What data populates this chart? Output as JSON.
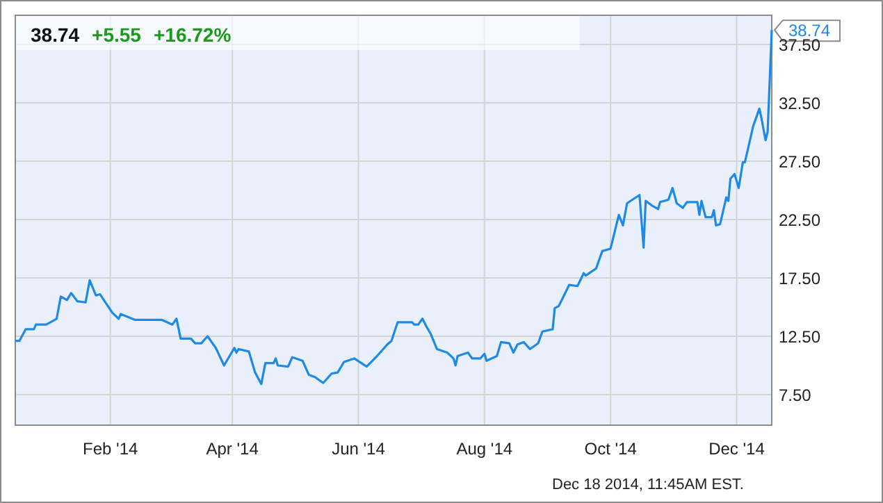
{
  "chart_data": {
    "type": "line",
    "title": "38.74",
    "x": [
      "2013-12-17",
      "2013-12-19",
      "2013-12-22",
      "2013-12-26",
      "2013-12-27",
      "2014-01-01",
      "2014-01-06",
      "2014-01-08",
      "2014-01-11",
      "2014-01-13",
      "2014-01-16",
      "2014-01-20",
      "2014-01-22",
      "2014-01-25",
      "2014-01-27",
      "2014-02-02",
      "2014-02-05",
      "2014-02-06",
      "2014-02-13",
      "2014-02-26",
      "2014-03-03",
      "2014-03-05",
      "2014-03-07",
      "2014-03-12",
      "2014-03-14",
      "2014-03-17",
      "2014-03-20",
      "2014-03-24",
      "2014-03-28",
      "2014-04-02",
      "2014-04-03",
      "2014-04-04",
      "2014-04-09",
      "2014-04-12",
      "2014-04-15",
      "2014-04-17",
      "2014-04-21",
      "2014-04-22",
      "2014-04-23",
      "2014-04-28",
      "2014-04-30",
      "2014-05-05",
      "2014-05-08",
      "2014-05-11",
      "2014-05-15",
      "2014-05-19",
      "2014-05-22",
      "2014-05-25",
      "2014-05-30",
      "2014-06-05",
      "2014-06-10",
      "2014-06-15",
      "2014-06-17",
      "2014-06-20",
      "2014-06-27",
      "2014-06-28",
      "2014-06-30",
      "2014-07-02",
      "2014-07-04",
      "2014-07-06",
      "2014-07-09",
      "2014-07-14",
      "2014-07-17",
      "2014-07-18",
      "2014-07-19",
      "2014-07-24",
      "2014-07-26",
      "2014-07-30",
      "2014-08-01",
      "2014-08-02",
      "2014-08-07",
      "2014-08-09",
      "2014-08-13",
      "2014-08-15",
      "2014-08-17",
      "2014-08-20",
      "2014-08-23",
      "2014-08-27",
      "2014-08-29",
      "2014-09-03",
      "2014-09-04",
      "2014-09-06",
      "2014-09-11",
      "2014-09-15",
      "2014-09-18",
      "2014-09-19",
      "2014-09-24",
      "2014-09-27",
      "2014-10-01",
      "2014-10-05",
      "2014-10-07",
      "2014-10-09",
      "2014-10-15",
      "2014-10-17",
      "2014-10-18",
      "2014-10-21",
      "2014-10-24",
      "2014-10-25",
      "2014-10-29",
      "2014-10-31",
      "2014-11-02",
      "2014-11-05",
      "2014-11-07",
      "2014-11-12",
      "2014-11-13",
      "2014-11-14",
      "2014-11-16",
      "2014-11-19",
      "2014-11-20",
      "2014-11-21",
      "2014-11-23",
      "2014-11-26",
      "2014-11-27",
      "2014-11-28",
      "2014-11-30",
      "2014-12-02",
      "2014-12-04",
      "2014-12-05",
      "2014-12-09",
      "2014-12-12",
      "2014-12-13",
      "2014-12-15",
      "2014-12-16",
      "2014-12-18"
    ],
    "series": [
      {
        "color": "#1e8ae6",
        "values": [
          12.1,
          12.1,
          13.1,
          13.1,
          13.5,
          13.5,
          14.0,
          15.9,
          15.6,
          16.2,
          15.5,
          15.4,
          17.3,
          16.0,
          16.1,
          14.5,
          14.0,
          14.4,
          13.9,
          13.9,
          13.5,
          14.0,
          12.3,
          12.3,
          11.9,
          11.9,
          12.5,
          11.5,
          10.0,
          11.5,
          11.1,
          11.4,
          11.2,
          9.4,
          8.4,
          10.2,
          10.2,
          10.6,
          10.0,
          9.9,
          10.7,
          10.4,
          9.2,
          9.0,
          8.5,
          9.3,
          9.4,
          10.3,
          10.6,
          9.9,
          10.8,
          11.8,
          12.1,
          13.7,
          13.7,
          13.5,
          13.5,
          14.0,
          13.3,
          12.7,
          11.4,
          11.1,
          10.6,
          10.0,
          10.8,
          11.1,
          10.6,
          10.6,
          11.0,
          10.4,
          10.8,
          12.0,
          11.9,
          11.1,
          11.8,
          12.0,
          11.4,
          11.9,
          12.9,
          13.1,
          14.9,
          15.1,
          16.9,
          16.8,
          17.9,
          17.7,
          18.3,
          19.8,
          20.0,
          22.9,
          22.0,
          23.9,
          24.6,
          20.1,
          24.1,
          23.7,
          23.4,
          24.0,
          24.2,
          25.2,
          23.9,
          23.5,
          24.0,
          24.0,
          22.9,
          24.1,
          22.7,
          22.7,
          23.3,
          22.0,
          22.1,
          24.4,
          24.1,
          26.0,
          26.4,
          25.2,
          27.4,
          27.4,
          30.5,
          32.0,
          31.2,
          29.3,
          30.0,
          38.74
        ],
        "value_labels": [
          null,
          null,
          null,
          null,
          null,
          null,
          null,
          null,
          null,
          null,
          null,
          null,
          null,
          null,
          null,
          null,
          null,
          null,
          null,
          null,
          null,
          null,
          null,
          null,
          null,
          null,
          null,
          null,
          null,
          null,
          null,
          null,
          null,
          null,
          null,
          null,
          null,
          null,
          null,
          null,
          null,
          null,
          null,
          null,
          null,
          null,
          null,
          null,
          null,
          null,
          null,
          null,
          null,
          null,
          null,
          null,
          null,
          null,
          null,
          null,
          null,
          null,
          null,
          null,
          null,
          null,
          null,
          null,
          null,
          null,
          null,
          null,
          null,
          null,
          null,
          null,
          null,
          null,
          null,
          null,
          null,
          null,
          null,
          null,
          null,
          null,
          null,
          null,
          null,
          null,
          null,
          null,
          null,
          null,
          null,
          null,
          null,
          null,
          null,
          null,
          null,
          null,
          null,
          null,
          null,
          null,
          null,
          null,
          null,
          null,
          null,
          null,
          null,
          null,
          null,
          null,
          null,
          null,
          null,
          null,
          null,
          null,
          null,
          "38.74"
        ]
      }
    ],
    "xlim": [
      "2013-12-17",
      "2014-12-18"
    ],
    "xticks": [
      {
        "value": "2014-02-01",
        "label": "Feb '14"
      },
      {
        "value": "2014-04-01",
        "label": "Apr '14"
      },
      {
        "value": "2014-06-01",
        "label": "Jun '14"
      },
      {
        "value": "2014-08-01",
        "label": "Aug '14"
      },
      {
        "value": "2014-10-01",
        "label": "Oct '14"
      },
      {
        "value": "2014-12-01",
        "label": "Dec '14"
      }
    ],
    "ylim": [
      4.88,
      40
    ],
    "yticks": [
      {
        "value": 7.5,
        "label": "7.50"
      },
      {
        "value": 12.5,
        "label": "12.50"
      },
      {
        "value": 17.5,
        "label": "17.50"
      },
      {
        "value": 22.5,
        "label": "22.50"
      },
      {
        "value": 27.5,
        "label": "27.50"
      },
      {
        "value": 32.5,
        "label": "32.50"
      },
      {
        "value": 37.5,
        "label": "37.50"
      }
    ],
    "grid": true,
    "annotations": [
      "+5.55",
      "+16.72%",
      "Dec 18 2014, 11:45AM EST."
    ]
  }
}
